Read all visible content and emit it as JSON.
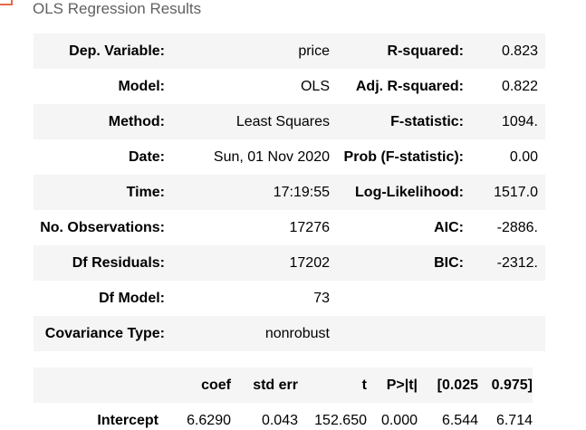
{
  "caption": "OLS Regression Results",
  "summary_rows": [
    {
      "label_left": "Dep. Variable:",
      "value_left": "price",
      "label_right": "R-squared:",
      "value_right": "0.823"
    },
    {
      "label_left": "Model:",
      "value_left": "OLS",
      "label_right": "Adj. R-squared:",
      "value_right": "0.822"
    },
    {
      "label_left": "Method:",
      "value_left": "Least Squares",
      "label_right": "F-statistic:",
      "value_right": "1094."
    },
    {
      "label_left": "Date:",
      "value_left": "Sun, 01 Nov 2020",
      "label_right": "Prob (F-statistic):",
      "value_right": "0.00"
    },
    {
      "label_left": "Time:",
      "value_left": "17:19:55",
      "label_right": "Log-Likelihood:",
      "value_right": "1517.0"
    },
    {
      "label_left": "No. Observations:",
      "value_left": "17276",
      "label_right": "AIC:",
      "value_right": "-2886."
    },
    {
      "label_left": "Df Residuals:",
      "value_left": "17202",
      "label_right": "BIC:",
      "value_right": "-2312."
    },
    {
      "label_left": "Df Model:",
      "value_left": "73",
      "label_right": "",
      "value_right": ""
    },
    {
      "label_left": "Covariance Type:",
      "value_left": "nonrobust",
      "label_right": "",
      "value_right": ""
    }
  ],
  "coef_table": {
    "headers": [
      "",
      "coef",
      "std err",
      "t",
      "P>|t|",
      "[0.025",
      "0.975]"
    ],
    "rows": [
      {
        "name": "Intercept",
        "values": [
          "6.6290",
          "0.043",
          "152.650",
          "0.000",
          "6.544",
          "6.714"
        ]
      }
    ]
  },
  "colors": {
    "accent_bracket": "#e8684a",
    "stripe": "#f5f5f5",
    "caption": "#616161"
  }
}
